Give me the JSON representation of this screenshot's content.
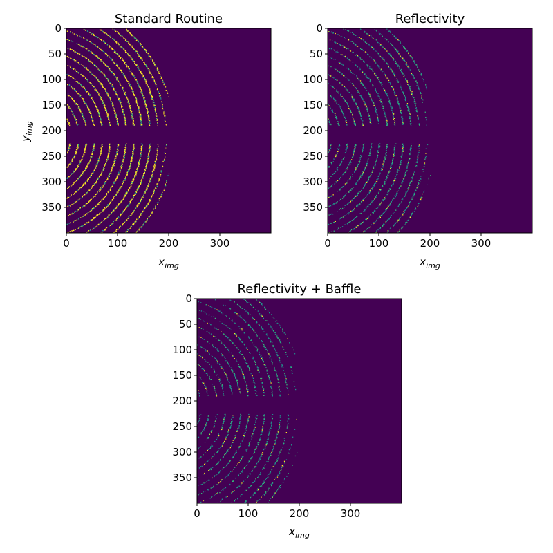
{
  "colors": {
    "background": "#440154",
    "low": "#21918c",
    "mid": "#35b779",
    "high": "#fde725"
  },
  "chart_data": [
    {
      "type": "heatmap",
      "title": "Standard Routine",
      "xlabel": "x",
      "xlabel_sub": "img",
      "ylabel": "y",
      "ylabel_sub": "img",
      "xlim": [
        0,
        400
      ],
      "ylim": [
        400,
        0
      ],
      "xticks": [
        "0",
        "100",
        "200",
        "300"
      ],
      "yticks": [
        "0",
        "50",
        "100",
        "150",
        "200",
        "250",
        "300",
        "350"
      ],
      "pattern": {
        "ring_center": [
          -70,
          210
        ],
        "ring_spacing": 15.5,
        "ring_start": 78,
        "max_x": 200,
        "gap_y": [
          190,
          225
        ],
        "density": 0.9,
        "intensity": "high"
      }
    },
    {
      "type": "heatmap",
      "title": "Reflectivity",
      "xlabel": "x",
      "xlabel_sub": "img",
      "ylabel": "",
      "ylabel_sub": "",
      "xlim": [
        0,
        400
      ],
      "ylim": [
        400,
        0
      ],
      "xticks": [
        "0",
        "100",
        "200",
        "300"
      ],
      "yticks": [
        "0",
        "50",
        "100",
        "150",
        "200",
        "250",
        "300",
        "350"
      ],
      "pattern": {
        "ring_center": [
          -70,
          210
        ],
        "ring_spacing": 15.5,
        "ring_start": 78,
        "max_x": 200,
        "gap_y": [
          190,
          225
        ],
        "density": 0.6,
        "intensity": "medium"
      }
    },
    {
      "type": "heatmap",
      "title": "Reflectivity + Baffle",
      "xlabel": "x",
      "xlabel_sub": "img",
      "ylabel": "",
      "ylabel_sub": "",
      "xlim": [
        0,
        400
      ],
      "ylim": [
        400,
        0
      ],
      "xticks": [
        "0",
        "100",
        "200",
        "300"
      ],
      "yticks": [
        "0",
        "50",
        "100",
        "150",
        "200",
        "250",
        "300",
        "350"
      ],
      "pattern": {
        "ring_center": [
          -70,
          210
        ],
        "ring_spacing": 15.5,
        "ring_start": 78,
        "max_x": 195,
        "gap_y": [
          190,
          225
        ],
        "density": 0.45,
        "intensity": "medium"
      }
    }
  ]
}
